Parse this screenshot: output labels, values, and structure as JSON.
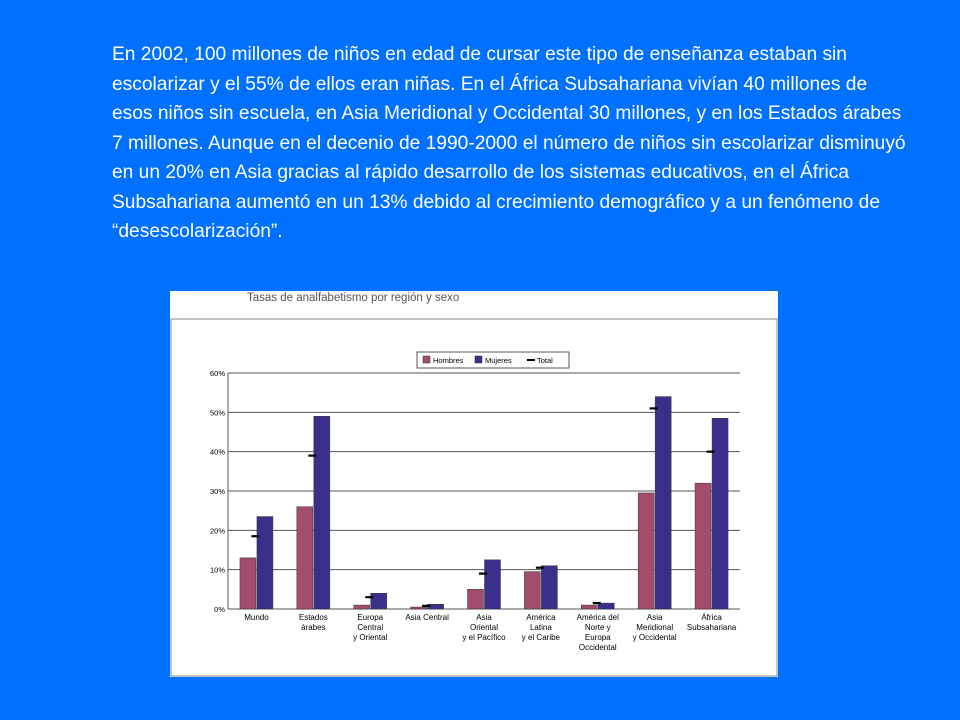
{
  "intro_text": "En 2002, 100 millones de niños en edad de cursar este tipo de enseñanza estaban sin escolarizar y el 55% de ellos eran niñas. En el África Subsahariana vivían 40 millones de esos niños sin escuela, en Asia Meridional y Occidental 30 millones, y en los Estados árabes 7 millones. Aunque en el decenio de 1990-2000 el número de niños sin escolarizar disminuyó en un 20% en Asia gracias al rápido desarrollo de los sistemas educativos, en el África Subsahariana aumentó en un 13% debido al crecimiento demográfico y a un fenómeno de “desescolarización”.",
  "chart_data": {
    "type": "bar",
    "title": "Tasas de analfabetismo por región y sexo",
    "categories": [
      [
        "Mundo"
      ],
      [
        "Estados",
        "árabes"
      ],
      [
        "Europa",
        "Central",
        "y Oriental"
      ],
      [
        "Asia Central"
      ],
      [
        "Asia",
        "Oriental",
        "y el Pacífico"
      ],
      [
        "América",
        "Latina",
        "y el Caribe"
      ],
      [
        "América del",
        "Norte y",
        "Europa",
        "Occidental"
      ],
      [
        "Asia",
        "Meridional",
        "y Occidental"
      ],
      [
        "África",
        "Subsahariana"
      ]
    ],
    "series": [
      {
        "name": "Hombres",
        "color": "#a34d6e",
        "values": [
          13,
          26,
          1,
          0.5,
          5,
          9.5,
          1,
          29.5,
          32
        ]
      },
      {
        "name": "Mujeres",
        "color": "#3b2f8c",
        "values": [
          23.5,
          49,
          4,
          1.2,
          12.5,
          11,
          1.5,
          54,
          48.5
        ]
      }
    ],
    "total": {
      "name": "Total",
      "color": "#000000",
      "values": [
        18.5,
        39,
        3,
        0.8,
        9,
        10.5,
        1.5,
        51,
        40
      ]
    },
    "ylim": [
      0,
      60
    ],
    "yticks": [
      0,
      10,
      20,
      30,
      40,
      50,
      60
    ],
    "ytick_labels": [
      "0%",
      "10%",
      "20%",
      "30%",
      "40%",
      "50%",
      "60%"
    ],
    "legend_position": "top-right",
    "grid": true
  }
}
